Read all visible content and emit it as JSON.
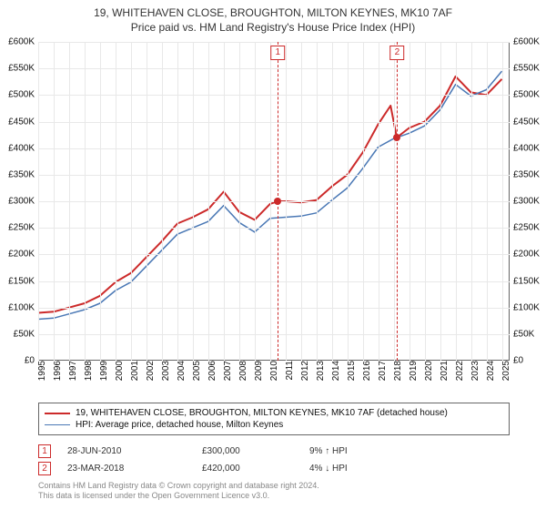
{
  "title": {
    "line1": "19, WHITEHAVEN CLOSE, BROUGHTON, MILTON KEYNES, MK10 7AF",
    "line2": "Price paid vs. HM Land Registry's House Price Index (HPI)",
    "fontsize": 12,
    "color": "#333333"
  },
  "chart": {
    "type": "line",
    "background_color": "#ffffff",
    "grid_color": "#e8e8e8",
    "shade_color": "#f1f5fb",
    "border_color": "#666666",
    "label_fontsize": 10,
    "x": {
      "min": 1995,
      "max": 2025.5,
      "ticks": [
        1995,
        1996,
        1997,
        1998,
        1999,
        2000,
        2001,
        2002,
        2003,
        2004,
        2005,
        2006,
        2007,
        2008,
        2009,
        2010,
        2011,
        2012,
        2013,
        2014,
        2015,
        2016,
        2017,
        2018,
        2019,
        2020,
        2021,
        2022,
        2023,
        2024,
        2025
      ],
      "tick_labels": [
        "1995",
        "1996",
        "1997",
        "1998",
        "1999",
        "2000",
        "2001",
        "2002",
        "2003",
        "2004",
        "2005",
        "2006",
        "2007",
        "2008",
        "2009",
        "2010",
        "2011",
        "2012",
        "2013",
        "2014",
        "2015",
        "2016",
        "2017",
        "2018",
        "2019",
        "2020",
        "2021",
        "2022",
        "2023",
        "2024",
        "2025"
      ],
      "shade_start": 2010.5
    },
    "y": {
      "min": 0,
      "max": 600000,
      "step": 50000,
      "tick_labels": [
        "£0",
        "£50K",
        "£100K",
        "£150K",
        "£200K",
        "£250K",
        "£300K",
        "£350K",
        "£400K",
        "£450K",
        "£500K",
        "£550K",
        "£600K"
      ]
    },
    "series": [
      {
        "name": "price_paid",
        "label": "19, WHITEHAVEN CLOSE, BROUGHTON, MILTON KEYNES, MK10 7AF (detached house)",
        "color": "#cc2a2a",
        "line_width": 2,
        "points": [
          [
            1995,
            90000
          ],
          [
            1996,
            92000
          ],
          [
            1997,
            100000
          ],
          [
            1998,
            108000
          ],
          [
            1999,
            122000
          ],
          [
            2000,
            148000
          ],
          [
            2001,
            165000
          ],
          [
            2002,
            195000
          ],
          [
            2003,
            225000
          ],
          [
            2004,
            258000
          ],
          [
            2005,
            270000
          ],
          [
            2006,
            285000
          ],
          [
            2007,
            318000
          ],
          [
            2008,
            280000
          ],
          [
            2009,
            265000
          ],
          [
            2010,
            295000
          ],
          [
            2010.5,
            300000
          ],
          [
            2011,
            300000
          ],
          [
            2012,
            298000
          ],
          [
            2013,
            302000
          ],
          [
            2014,
            328000
          ],
          [
            2015,
            350000
          ],
          [
            2016,
            392000
          ],
          [
            2017,
            445000
          ],
          [
            2017.8,
            480000
          ],
          [
            2018.2,
            420000
          ],
          [
            2019,
            438000
          ],
          [
            2020,
            450000
          ],
          [
            2021,
            480000
          ],
          [
            2022,
            535000
          ],
          [
            2023,
            505000
          ],
          [
            2024,
            500000
          ],
          [
            2025,
            530000
          ]
        ]
      },
      {
        "name": "hpi",
        "label": "HPI: Average price, detached house, Milton Keynes",
        "color": "#4a78b5",
        "line_width": 1.5,
        "points": [
          [
            1995,
            78000
          ],
          [
            1996,
            80000
          ],
          [
            1997,
            88000
          ],
          [
            1998,
            96000
          ],
          [
            1999,
            108000
          ],
          [
            2000,
            132000
          ],
          [
            2001,
            148000
          ],
          [
            2002,
            178000
          ],
          [
            2003,
            208000
          ],
          [
            2004,
            238000
          ],
          [
            2005,
            250000
          ],
          [
            2006,
            262000
          ],
          [
            2007,
            292000
          ],
          [
            2008,
            260000
          ],
          [
            2009,
            242000
          ],
          [
            2010,
            268000
          ],
          [
            2011,
            270000
          ],
          [
            2012,
            272000
          ],
          [
            2013,
            278000
          ],
          [
            2014,
            302000
          ],
          [
            2015,
            325000
          ],
          [
            2016,
            362000
          ],
          [
            2017,
            402000
          ],
          [
            2018,
            418000
          ],
          [
            2019,
            428000
          ],
          [
            2020,
            442000
          ],
          [
            2021,
            472000
          ],
          [
            2022,
            520000
          ],
          [
            2023,
            498000
          ],
          [
            2024,
            510000
          ],
          [
            2025,
            545000
          ]
        ]
      }
    ],
    "markers": [
      {
        "n": "1",
        "x": 2010.5,
        "y": 300000,
        "date": "28-JUN-2010",
        "price": "£300,000",
        "delta": "9% ↑ HPI",
        "dot_color": "#cc2a2a"
      },
      {
        "n": "2",
        "x": 2018.22,
        "y": 420000,
        "date": "23-MAR-2018",
        "price": "£420,000",
        "delta": "4% ↓ HPI",
        "dot_color": "#cc2a2a"
      }
    ]
  },
  "legend": {
    "border_color": "#666666",
    "fontsize": 10
  },
  "footnote": {
    "line1": "Contains HM Land Registry data © Crown copyright and database right 2024.",
    "line2": "This data is licensed under the Open Government Licence v3.0.",
    "color": "#888888",
    "fontsize": 9
  }
}
